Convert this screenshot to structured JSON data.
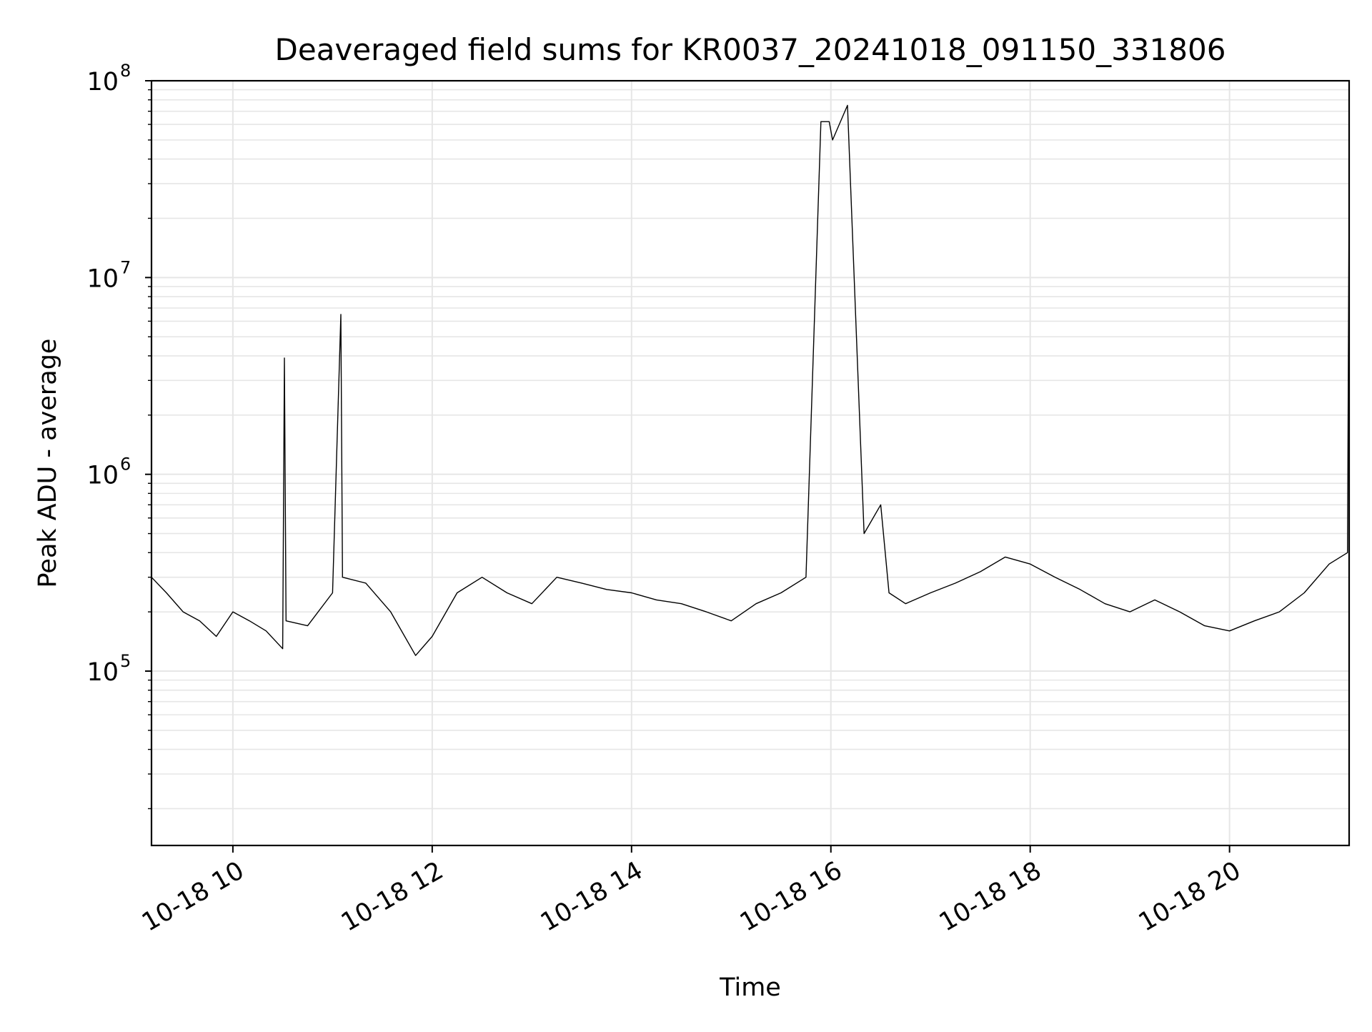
{
  "chart_data": {
    "type": "line",
    "title": "Deaveraged field sums for KR0037_20241018_091150_331806",
    "xlabel": "Time",
    "ylabel": "Peak ADU - average",
    "y_scale": "log",
    "ylim": [
      13000,
      100000000
    ],
    "xlim": [
      "2024-10-18T09:11",
      "2024-10-18T21:12"
    ],
    "grid": true,
    "line_color": "#000000",
    "grid_color": "#e6e6e6",
    "x_ticks": [
      {
        "value": "2024-10-18T10:00",
        "label": "10-18 10"
      },
      {
        "value": "2024-10-18T12:00",
        "label": "10-18 12"
      },
      {
        "value": "2024-10-18T14:00",
        "label": "10-18 14"
      },
      {
        "value": "2024-10-18T16:00",
        "label": "10-18 16"
      },
      {
        "value": "2024-10-18T18:00",
        "label": "10-18 18"
      },
      {
        "value": "2024-10-18T20:00",
        "label": "10-18 20"
      }
    ],
    "y_ticks": [
      {
        "value": 100000,
        "base": "10",
        "exp": "5"
      },
      {
        "value": 1000000,
        "base": "10",
        "exp": "6"
      },
      {
        "value": 10000000,
        "base": "10",
        "exp": "7"
      },
      {
        "value": 100000000,
        "base": "10",
        "exp": "8"
      }
    ],
    "series": [
      {
        "points": [
          [
            "2024-10-18T09:11",
            300000
          ],
          [
            "2024-10-18T09:20",
            250000
          ],
          [
            "2024-10-18T09:30",
            200000
          ],
          [
            "2024-10-18T09:40",
            180000
          ],
          [
            "2024-10-18T09:50",
            150000
          ],
          [
            "2024-10-18T10:00",
            200000
          ],
          [
            "2024-10-18T10:10",
            180000
          ],
          [
            "2024-10-18T10:20",
            160000
          ],
          [
            "2024-10-18T10:30",
            130000
          ],
          [
            "2024-10-18T10:31",
            3900000
          ],
          [
            "2024-10-18T10:32",
            180000
          ],
          [
            "2024-10-18T10:45",
            170000
          ],
          [
            "2024-10-18T11:00",
            250000
          ],
          [
            "2024-10-18T11:05",
            6500000
          ],
          [
            "2024-10-18T11:06",
            300000
          ],
          [
            "2024-10-18T11:20",
            280000
          ],
          [
            "2024-10-18T11:35",
            200000
          ],
          [
            "2024-10-18T11:50",
            120000
          ],
          [
            "2024-10-18T12:00",
            150000
          ],
          [
            "2024-10-18T12:15",
            250000
          ],
          [
            "2024-10-18T12:30",
            300000
          ],
          [
            "2024-10-18T12:45",
            250000
          ],
          [
            "2024-10-18T13:00",
            220000
          ],
          [
            "2024-10-18T13:15",
            300000
          ],
          [
            "2024-10-18T13:30",
            280000
          ],
          [
            "2024-10-18T13:45",
            260000
          ],
          [
            "2024-10-18T14:00",
            250000
          ],
          [
            "2024-10-18T14:15",
            230000
          ],
          [
            "2024-10-18T14:30",
            220000
          ],
          [
            "2024-10-18T14:45",
            200000
          ],
          [
            "2024-10-18T15:00",
            180000
          ],
          [
            "2024-10-18T15:15",
            220000
          ],
          [
            "2024-10-18T15:30",
            250000
          ],
          [
            "2024-10-18T15:45",
            300000
          ],
          [
            "2024-10-18T15:54",
            62000000
          ],
          [
            "2024-10-18T15:59",
            62000000
          ],
          [
            "2024-10-18T16:01",
            50000000
          ],
          [
            "2024-10-18T16:10",
            75000000
          ],
          [
            "2024-10-18T16:20",
            500000
          ],
          [
            "2024-10-18T16:30",
            700000
          ],
          [
            "2024-10-18T16:35",
            250000
          ],
          [
            "2024-10-18T16:45",
            220000
          ],
          [
            "2024-10-18T17:00",
            250000
          ],
          [
            "2024-10-18T17:15",
            280000
          ],
          [
            "2024-10-18T17:30",
            320000
          ],
          [
            "2024-10-18T17:45",
            380000
          ],
          [
            "2024-10-18T18:00",
            350000
          ],
          [
            "2024-10-18T18:15",
            300000
          ],
          [
            "2024-10-18T18:30",
            260000
          ],
          [
            "2024-10-18T18:45",
            220000
          ],
          [
            "2024-10-18T19:00",
            200000
          ],
          [
            "2024-10-18T19:15",
            230000
          ],
          [
            "2024-10-18T19:30",
            200000
          ],
          [
            "2024-10-18T19:45",
            170000
          ],
          [
            "2024-10-18T20:00",
            160000
          ],
          [
            "2024-10-18T20:15",
            180000
          ],
          [
            "2024-10-18T20:30",
            200000
          ],
          [
            "2024-10-18T20:45",
            250000
          ],
          [
            "2024-10-18T21:00",
            350000
          ],
          [
            "2024-10-18T21:11",
            400000
          ],
          [
            "2024-10-18T21:12",
            27000000
          ]
        ]
      }
    ]
  }
}
